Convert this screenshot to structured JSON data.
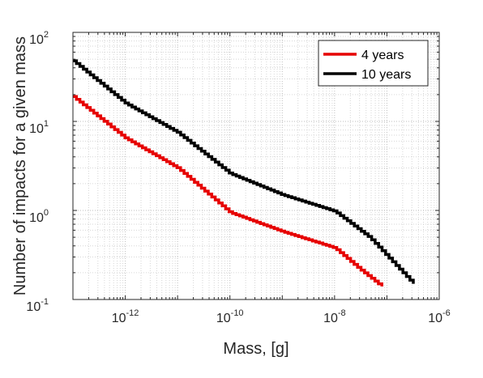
{
  "chart_data": {
    "type": "line",
    "xlabel": "Mass, [g]",
    "ylabel": "Number of impacts for a given mass",
    "x_scale": "log",
    "y_scale": "log",
    "xlim": [
      1e-13,
      1e-06
    ],
    "ylim": [
      0.1,
      100
    ],
    "x_ticks": [
      {
        "base": "10",
        "exp": "-12",
        "value": 1e-12
      },
      {
        "base": "10",
        "exp": "-10",
        "value": 1e-10
      },
      {
        "base": "10",
        "exp": "-8",
        "value": 1e-08
      },
      {
        "base": "10",
        "exp": "-6",
        "value": 1e-06
      }
    ],
    "y_ticks": [
      {
        "base": "10",
        "exp": "-1",
        "value": 0.1
      },
      {
        "base": "10",
        "exp": "0",
        "value": 1
      },
      {
        "base": "10",
        "exp": "1",
        "value": 10
      },
      {
        "base": "10",
        "exp": "2",
        "value": 100
      }
    ],
    "grid": true,
    "legend_position": "top-right",
    "series": [
      {
        "name": "4 years",
        "color": "#e60000",
        "x": [
          1e-13,
          1e-12,
          1e-11,
          1e-10,
          1e-09,
          1e-08,
          3e-08,
          8e-08
        ],
        "y": [
          19,
          6.5,
          3.0,
          0.95,
          0.58,
          0.38,
          0.22,
          0.14
        ]
      },
      {
        "name": "10 years",
        "color": "#000000",
        "x": [
          1e-13,
          1e-12,
          1e-11,
          1e-10,
          1e-09,
          1e-08,
          4.6e-08,
          3.2e-07
        ],
        "y": [
          48,
          16,
          7.5,
          2.6,
          1.5,
          0.98,
          0.5,
          0.15
        ]
      }
    ]
  }
}
